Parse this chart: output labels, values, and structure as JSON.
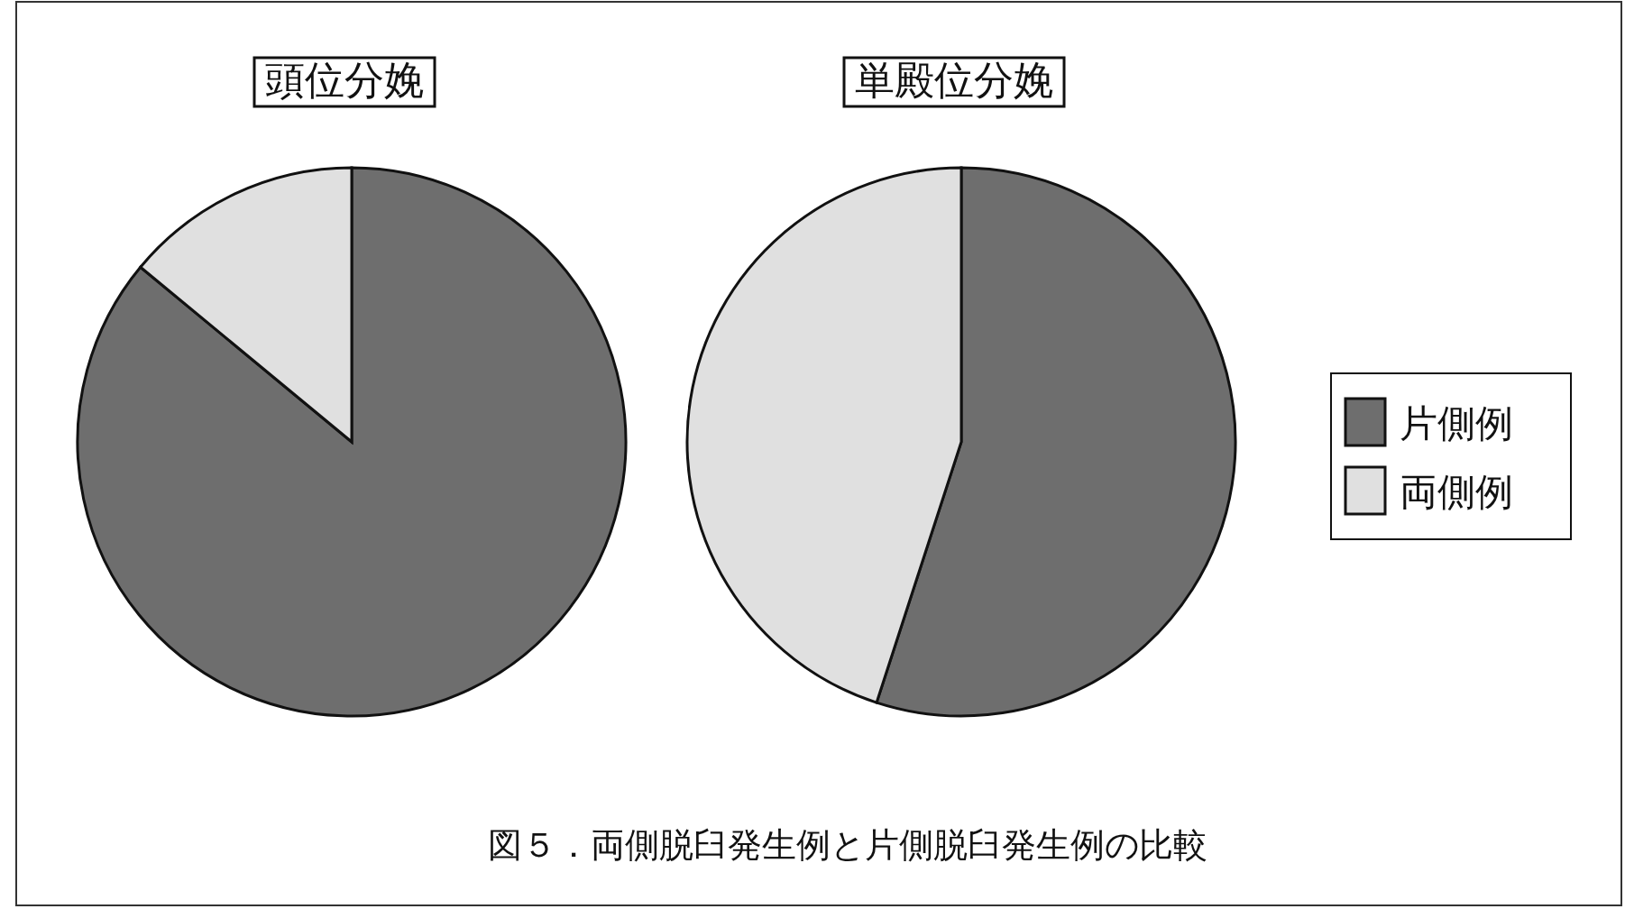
{
  "chart_data": [
    {
      "type": "pie",
      "title": "頭位分娩",
      "categories": [
        null,
        null
      ],
      "values": [
        86,
        14
      ],
      "colors": [
        "#6e6e6e",
        "#e0e0e0"
      ]
    },
    {
      "type": "pie",
      "title": "単殿位分娩",
      "categories": [
        "片側例",
        "両側例"
      ],
      "values": [
        55,
        45
      ],
      "colors": [
        "#6e6e6e",
        "#e0e0e0"
      ],
      "legend": "right",
      "annotations": [
        "図５．両側脱臼発生例と片側脱臼発生例の比較"
      ]
    }
  ]
}
